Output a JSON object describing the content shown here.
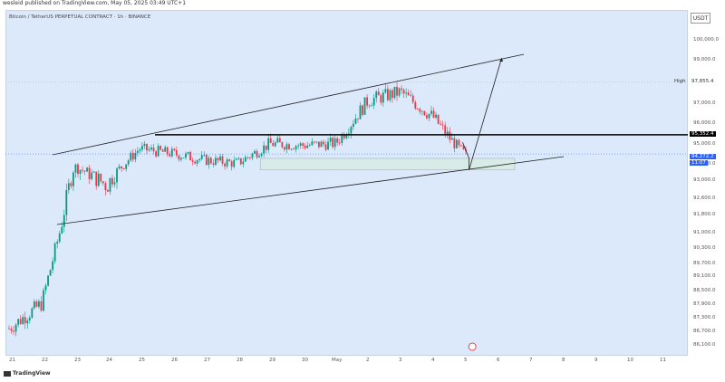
{
  "header": {
    "published_text": "wesleid published on TradingView.com, May 05, 2025 03:49 UTC+1"
  },
  "chart_title": "Bitcoin / TetherUS PERPETUAL CONTRACT · 1h · BINANCE",
  "footer": {
    "brand": "TradingView"
  },
  "price_scale": {
    "currency": "USDT",
    "high_label": "High",
    "ticks": [
      "100,000.0",
      "99,000.0",
      "98,000.0",
      "97,000.0",
      "96,000.0",
      "95,000.0",
      "94,000.0",
      "93,000.0",
      "92,600.0",
      "91,800.0",
      "91,000.0",
      "90,300.0",
      "89,700.0",
      "89,100.0",
      "88,500.0",
      "87,900.0",
      "87,300.0",
      "86,700.0",
      "86,100.0"
    ],
    "high_value": "97,855.4",
    "resistance_value": "95,352.4",
    "current_price": "94,272.2",
    "countdown": "11:07"
  },
  "time_axis": [
    "21",
    "22",
    "23",
    "24",
    "25",
    "26",
    "27",
    "28",
    "29",
    "30",
    "May",
    "2",
    "3",
    "4",
    "5",
    "6",
    "7",
    "8",
    "9",
    "10",
    "11"
  ],
  "colors": {
    "panel_bg": "#dbe9fb",
    "up": "#089981",
    "down": "#f23645",
    "zone": "#d9ebe6",
    "current": "#2962ff"
  },
  "chart_data": {
    "type": "line",
    "title": "Bitcoin / TetherUS PERPETUAL CONTRACT · 1h · BINANCE",
    "xlabel": "",
    "ylabel": "",
    "x": [
      "21",
      "22",
      "23",
      "24",
      "25",
      "26",
      "27",
      "28",
      "29",
      "30",
      "May",
      "2",
      "3",
      "4",
      "5"
    ],
    "series": [
      {
        "values": [
          86700,
          87800,
          93500,
          92600,
          94600,
          94300,
          93900,
          93700,
          94900,
          94800,
          94900,
          97000,
          97400,
          96200,
          94200
        ]
      }
    ],
    "ylim": [
      86000,
      100300
    ],
    "annotations": {
      "high": 97855.4,
      "resistance": 95352.4,
      "current": 94272.2,
      "zone": [
        93300,
        94000
      ],
      "projection_target": 99000
    }
  }
}
